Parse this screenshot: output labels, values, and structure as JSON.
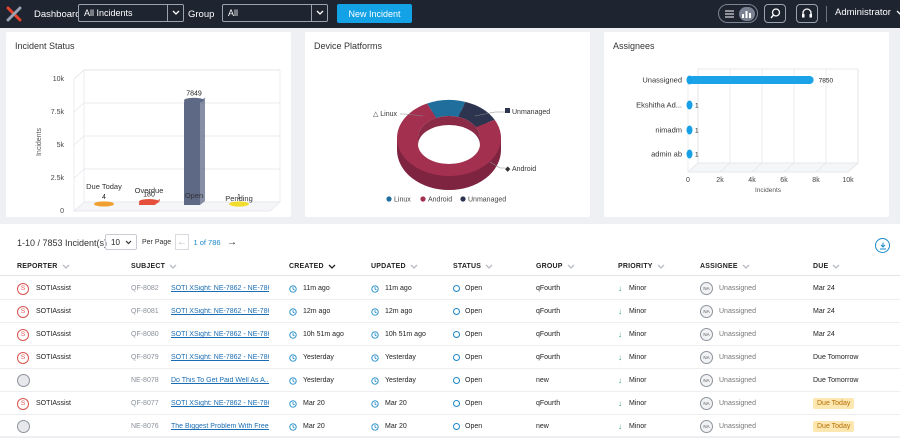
{
  "topbar": {
    "dashboard_label": "Dashboard",
    "incidents_select": "All Incidents",
    "group_label": "Group",
    "group_select": "All",
    "new_incident": "New Incident",
    "user": "Administrator"
  },
  "cards": {
    "status_title": "Incident Status",
    "platforms_title": "Device Platforms",
    "assignees_title": "Assignees"
  },
  "incident_status_chart": {
    "type": "bar",
    "ylabel": "Incidents",
    "y_ticks": [
      "10k",
      "7.5k",
      "5k",
      "2.5k",
      "0"
    ],
    "ylim": [
      0,
      10000
    ],
    "categories": [
      "Due Today",
      "Overdue",
      "Open",
      "Pending"
    ],
    "values": [
      4,
      180,
      7849,
      1
    ],
    "value_labels": [
      "4",
      "180",
      "7849",
      "1"
    ],
    "colors": [
      "#f0a030",
      "#e4503c",
      "#5e6a85",
      "#f2dc2e"
    ]
  },
  "chart_data": [
    {
      "type": "bar",
      "ylabel": "Incidents",
      "categories": [
        "Due Today",
        "Overdue",
        "Open",
        "Pending"
      ],
      "values": [
        4,
        180,
        7849,
        1
      ],
      "ylim": [
        0,
        10000
      ]
    },
    {
      "type": "pie",
      "categories": [
        "Linux",
        "Android",
        "Unmanaged"
      ],
      "values": [
        12,
        76,
        12
      ],
      "colors": [
        "#1f6e9c",
        "#a3304f",
        "#2c3450"
      ]
    },
    {
      "type": "bar",
      "orientation": "horizontal",
      "xlabel": "Incidents",
      "categories": [
        "Unassigned",
        "Ekshitha Ad...",
        "nimadm",
        "admin ab"
      ],
      "values": [
        7850,
        1,
        1,
        1
      ],
      "xlim": [
        0,
        10000
      ]
    }
  ],
  "platforms_chart": {
    "labels": {
      "linux": "Linux",
      "unmanaged": "Unmanaged",
      "android": "Android"
    },
    "legend": [
      "Linux",
      "Android",
      "Unmanaged"
    ],
    "colors": {
      "linux": "#1f6e9c",
      "android": "#a3304f",
      "unmanaged": "#2c3450"
    }
  },
  "assignees_chart": {
    "xlabel": "Incidents",
    "x_ticks": [
      "0",
      "2k",
      "4k",
      "6k",
      "8k",
      "10k"
    ],
    "categories": [
      "Unassigned",
      "Ekshitha Ad...",
      "nimadm",
      "admin ab"
    ],
    "value_labels": [
      "7850",
      "1",
      "1",
      "1"
    ],
    "color": "#1ba3e8"
  },
  "list": {
    "count_text": "1-10 / 7853 Incident(s)",
    "per_page_value": "10",
    "per_page_label": "Per Page",
    "page_text": "1 of 786",
    "columns": [
      "REPORTER",
      "SUBJECT",
      "CREATED",
      "UPDATED",
      "STATUS",
      "GROUP",
      "PRIORITY",
      "ASSIGNEE",
      "DUE"
    ],
    "rows": [
      {
        "reporter": "SOTIAssist",
        "id": "QF-8082",
        "subject": "SOTI XSight: NE-7862 - NE-786...",
        "created": "11m ago",
        "updated": "11m ago",
        "status": "Open",
        "group": "qFourth",
        "priority": "Minor",
        "assignee": "Unassigned",
        "due": "Mar 24",
        "due_badge": false
      },
      {
        "reporter": "SOTIAssist",
        "id": "QF-8081",
        "subject": "SOTI XSight: NE-7862 - NE-786...",
        "created": "12m ago",
        "updated": "12m ago",
        "status": "Open",
        "group": "qFourth",
        "priority": "Minor",
        "assignee": "Unassigned",
        "due": "Mar 24",
        "due_badge": false
      },
      {
        "reporter": "SOTIAssist",
        "id": "QF-8080",
        "subject": "SOTI XSight: NE-7862 - NE-786...",
        "created": "10h 51m ago",
        "updated": "10h 51m ago",
        "status": "Open",
        "group": "qFourth",
        "priority": "Minor",
        "assignee": "Unassigned",
        "due": "Mar 24",
        "due_badge": false
      },
      {
        "reporter": "SOTIAssist",
        "id": "QF-8079",
        "subject": "SOTI XSight: NE-7862 - NE-786...",
        "created": "Yesterday",
        "updated": "Yesterday",
        "status": "Open",
        "group": "qFourth",
        "priority": "Minor",
        "assignee": "Unassigned",
        "due": "Due Tomorrow",
        "due_badge": false
      },
      {
        "reporter": "",
        "id": "NE-8078",
        "subject": "Do This To Get Paid Well As A...",
        "created": "Yesterday",
        "updated": "Yesterday",
        "status": "Open",
        "group": "new",
        "priority": "Minor",
        "assignee": "Unassigned",
        "due": "Due Tomorrow",
        "due_badge": false
      },
      {
        "reporter": "SOTIAssist",
        "id": "QF-8077",
        "subject": "SOTI XSight: NE-7862 - NE-786...",
        "created": "Mar 20",
        "updated": "Mar 20",
        "status": "Open",
        "group": "qFourth",
        "priority": "Minor",
        "assignee": "Unassigned",
        "due": "Due Today",
        "due_badge": true
      },
      {
        "reporter": "",
        "id": "NE-8076",
        "subject": "The Biggest Problem With Free...",
        "created": "Mar 20",
        "updated": "Mar 20",
        "status": "Open",
        "group": "new",
        "priority": "Minor",
        "assignee": "Unassigned",
        "due": "Due Today",
        "due_badge": true
      }
    ]
  }
}
